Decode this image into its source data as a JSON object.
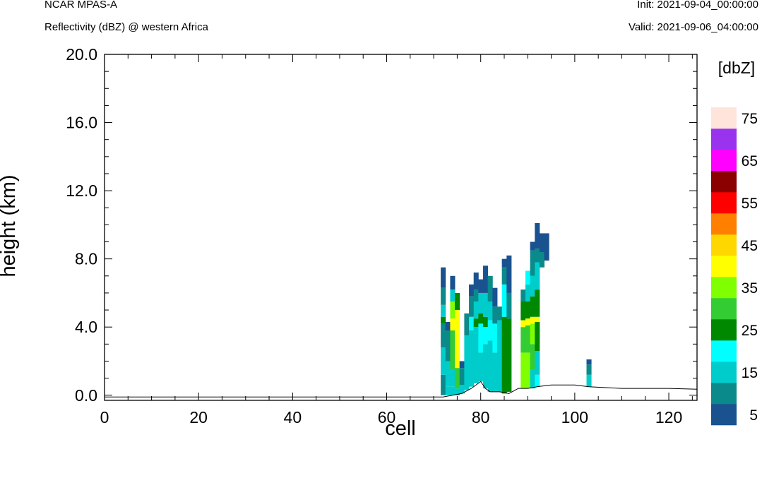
{
  "header": {
    "model": "NCAR MPAS-A",
    "field": "Reflectivity (dBZ) @ western Africa",
    "init": "Init: 2021-09-04_00:00:00",
    "valid": "Valid: 2021-09-06_04:00:00"
  },
  "chart_data": {
    "type": "heatmap",
    "xlabel": "cell",
    "ylabel": "height (km)",
    "xlim": [
      0,
      126
    ],
    "ylim": [
      -0.3,
      20.0
    ],
    "x_ticks": [
      "0",
      "20",
      "40",
      "60",
      "80",
      "100",
      "120"
    ],
    "y_ticks": [
      "0.0",
      "4.0",
      "8.0",
      "12.0",
      "16.0",
      "20.0"
    ],
    "colorbar": {
      "title": "[dbZ]",
      "levels": [
        5,
        10,
        15,
        20,
        25,
        30,
        35,
        40,
        45,
        50,
        55,
        60,
        65,
        70,
        75
      ],
      "labels": [
        "5",
        "15",
        "25",
        "35",
        "45",
        "55",
        "65",
        "75"
      ],
      "colors": [
        "#1a5290",
        "#0a8a8a",
        "#00cccc",
        "#00ffff",
        "#008800",
        "#33cc33",
        "#80ff00",
        "#ffff00",
        "#ffd700",
        "#ff8000",
        "#ff0000",
        "#8b0000",
        "#ff00ff",
        "#9933ee",
        "#ffe4dc"
      ]
    },
    "terrain": [
      [
        0,
        -0.1
      ],
      [
        72,
        -0.1
      ],
      [
        74,
        0.0
      ],
      [
        76,
        0.1
      ],
      [
        78,
        0.4
      ],
      [
        80,
        0.8
      ],
      [
        81,
        0.4
      ],
      [
        82,
        0.2
      ],
      [
        84,
        0.2
      ],
      [
        86,
        0.1
      ],
      [
        88,
        0.4
      ],
      [
        90,
        0.4
      ],
      [
        92,
        0.5
      ],
      [
        95,
        0.6
      ],
      [
        100,
        0.6
      ],
      [
        103,
        0.5
      ],
      [
        110,
        0.4
      ],
      [
        115,
        0.4
      ],
      [
        120,
        0.4
      ],
      [
        126,
        0.35
      ]
    ],
    "columns": [
      {
        "x": 72,
        "cells": [
          [
            0.0,
            1.2,
            10
          ],
          [
            1.2,
            2.8,
            15
          ],
          [
            2.8,
            4.2,
            10
          ],
          [
            4.2,
            4.6,
            25
          ],
          [
            4.6,
            5.3,
            15
          ],
          [
            5.3,
            6.3,
            10
          ],
          [
            6.3,
            7.5,
            5
          ]
        ]
      },
      {
        "x": 73,
        "cells": [
          [
            0.0,
            0.5,
            15
          ],
          [
            0.5,
            2.0,
            15
          ],
          [
            2.0,
            3.8,
            10
          ],
          [
            3.8,
            4.3,
            5
          ]
        ]
      },
      {
        "x": 74,
        "cells": [
          [
            0.0,
            0.5,
            15
          ],
          [
            0.5,
            1.5,
            15
          ],
          [
            1.5,
            3.8,
            30
          ],
          [
            3.8,
            4.5,
            40
          ],
          [
            4.5,
            5.5,
            35
          ],
          [
            5.5,
            6.2,
            15
          ],
          [
            6.2,
            7.0,
            5
          ]
        ]
      },
      {
        "x": 75,
        "cells": [
          [
            0.0,
            0.4,
            15
          ],
          [
            0.4,
            1.6,
            30
          ],
          [
            1.6,
            5.0,
            40
          ],
          [
            5.0,
            6.0,
            25
          ]
        ]
      },
      {
        "x": 76,
        "cells": [
          [
            0.1,
            0.6,
            15
          ],
          [
            0.6,
            1.6,
            10
          ],
          [
            1.6,
            2.0,
            5
          ]
        ]
      },
      {
        "x": 77,
        "cells": [
          [
            0.3,
            3.5,
            15
          ],
          [
            3.5,
            4.8,
            10
          ]
        ]
      },
      {
        "x": 78,
        "cells": [
          [
            0.5,
            3.8,
            15
          ],
          [
            3.8,
            4.6,
            20
          ],
          [
            4.6,
            5.8,
            10
          ],
          [
            5.8,
            6.5,
            5
          ]
        ]
      },
      {
        "x": 79,
        "cells": [
          [
            0.7,
            4.0,
            15
          ],
          [
            4.0,
            4.5,
            25
          ],
          [
            4.5,
            5.5,
            15
          ],
          [
            5.5,
            6.2,
            10
          ],
          [
            6.2,
            7.2,
            5
          ]
        ]
      },
      {
        "x": 80,
        "cells": [
          [
            0.8,
            2.5,
            15
          ],
          [
            2.5,
            4.2,
            20
          ],
          [
            4.2,
            4.8,
            25
          ],
          [
            4.8,
            6.0,
            15
          ],
          [
            6.0,
            6.8,
            5
          ]
        ]
      },
      {
        "x": 81,
        "cells": [
          [
            0.4,
            3.0,
            15
          ],
          [
            3.0,
            4.0,
            20
          ],
          [
            4.0,
            4.6,
            25
          ],
          [
            4.6,
            6.0,
            15
          ],
          [
            6.0,
            7.6,
            5
          ]
        ]
      },
      {
        "x": 82,
        "cells": [
          [
            0.2,
            3.2,
            15
          ],
          [
            3.2,
            4.4,
            20
          ],
          [
            4.4,
            5.5,
            15
          ],
          [
            5.5,
            7.0,
            10
          ]
        ]
      },
      {
        "x": 83,
        "cells": [
          [
            0.2,
            2.5,
            15
          ],
          [
            2.5,
            4.2,
            20
          ],
          [
            4.2,
            5.2,
            10
          ],
          [
            5.2,
            6.3,
            5
          ]
        ]
      },
      {
        "x": 84,
        "cells": [
          [
            0.2,
            4.4,
            15
          ],
          [
            4.4,
            5.2,
            10
          ]
        ]
      },
      {
        "x": 85,
        "cells": [
          [
            0.1,
            4.6,
            25
          ],
          [
            4.6,
            6.5,
            20
          ],
          [
            6.5,
            7.5,
            10
          ],
          [
            7.5,
            8.0,
            5
          ]
        ]
      },
      {
        "x": 86,
        "cells": [
          [
            0.2,
            4.5,
            25
          ],
          [
            4.5,
            6.0,
            10
          ],
          [
            6.0,
            8.2,
            5
          ]
        ]
      },
      {
        "x": 89,
        "cells": [
          [
            0.4,
            2.5,
            35
          ],
          [
            2.5,
            4.0,
            30
          ],
          [
            4.0,
            4.4,
            40
          ],
          [
            4.4,
            5.5,
            25
          ],
          [
            5.5,
            6.2,
            10
          ]
        ]
      },
      {
        "x": 90,
        "cells": [
          [
            0.4,
            2.5,
            35
          ],
          [
            2.5,
            4.1,
            30
          ],
          [
            4.1,
            4.5,
            40
          ],
          [
            4.5,
            5.5,
            25
          ],
          [
            5.5,
            6.5,
            15
          ],
          [
            6.5,
            7.3,
            20
          ]
        ]
      },
      {
        "x": 91,
        "cells": [
          [
            0.4,
            1.5,
            15
          ],
          [
            1.5,
            3.0,
            30
          ],
          [
            3.0,
            4.2,
            35
          ],
          [
            4.2,
            4.6,
            40
          ],
          [
            4.6,
            5.8,
            25
          ],
          [
            5.8,
            7.0,
            15
          ],
          [
            7.0,
            8.5,
            10
          ],
          [
            8.5,
            9.0,
            5
          ]
        ]
      },
      {
        "x": 92,
        "cells": [
          [
            0.5,
            1.2,
            20
          ],
          [
            1.2,
            2.6,
            15
          ],
          [
            2.6,
            4.3,
            25
          ],
          [
            4.3,
            4.6,
            40
          ],
          [
            4.6,
            6.2,
            25
          ],
          [
            6.2,
            7.8,
            15
          ],
          [
            7.8,
            8.6,
            10
          ],
          [
            8.6,
            10.1,
            5
          ]
        ]
      },
      {
        "x": 93,
        "cells": [
          [
            7.5,
            8.4,
            10
          ],
          [
            8.4,
            9.5,
            5
          ]
        ]
      },
      {
        "x": 94,
        "cells": [
          [
            7.9,
            9.5,
            5
          ]
        ]
      },
      {
        "x": 103,
        "cells": [
          [
            0.5,
            1.2,
            15
          ],
          [
            1.2,
            1.8,
            10
          ],
          [
            1.8,
            2.1,
            5
          ]
        ]
      }
    ]
  }
}
